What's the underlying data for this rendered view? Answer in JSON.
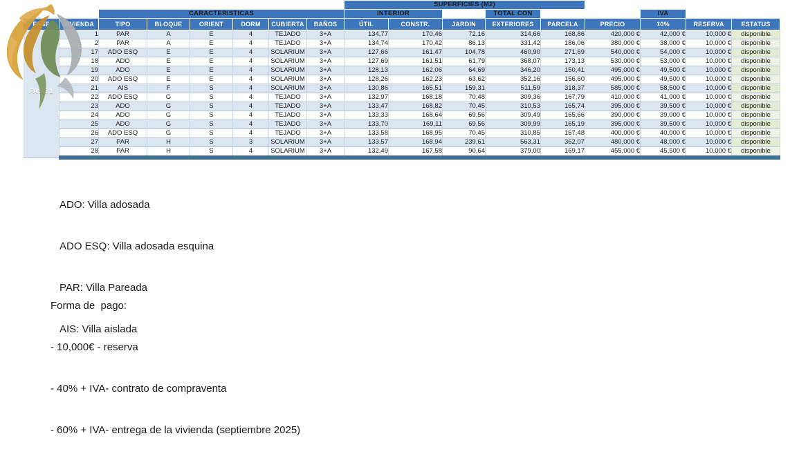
{
  "table": {
    "groups": {
      "superficies": "SUPERFICIES (M2)",
      "caracteristicas": "CARACTERISTICAS",
      "interior": "INTERIOR",
      "total_line1": "TOTAL CON",
      "iva_line1": "IVA"
    },
    "columns": [
      "FASE",
      "VIVIENDA",
      "TIPO",
      "BLOQUE",
      "ORIENT",
      "DORM",
      "CUBIERTA",
      "BAÑOS",
      "ÚTIL",
      "CONSTR.",
      "JARDIN",
      "EXTERIORES",
      "PARCELA",
      "PRECIO",
      "10%",
      "RESERVA",
      "ESTATUS"
    ],
    "col_keys": [
      "vivienda",
      "tipo",
      "bloque",
      "orient",
      "dorm",
      "cubierta",
      "banos",
      "util",
      "constr",
      "jardin",
      "total-con-exteriores",
      "parcela",
      "precio",
      "iva",
      "reserva",
      "estatus"
    ],
    "fase_label": "FASE 1",
    "rows": [
      [
        "1",
        "PAR",
        "A",
        "E",
        "4",
        "TEJADO",
        "3+A",
        "134,77",
        "170,46",
        "72,16",
        "314,66",
        "168,86",
        "420,000 €",
        "42,000 €",
        "10,000 €",
        "disponible"
      ],
      [
        "2",
        "PAR",
        "A",
        "E",
        "4",
        "TEJADO",
        "3+A",
        "134,74",
        "170,42",
        "86,13",
        "331,42",
        "186,06",
        "380,000 €",
        "38,000 €",
        "10,000 €",
        "disponible"
      ],
      [
        "17",
        "ADO ESQ",
        "E",
        "E",
        "4",
        "SOLARIUM",
        "3+A",
        "127,66",
        "161,47",
        "104,78",
        "460,90",
        "271,69",
        "540,000 €",
        "54,000 €",
        "10,000 €",
        "disponible"
      ],
      [
        "18",
        "ADO",
        "E",
        "E",
        "4",
        "SOLARIUM",
        "3+A",
        "127,69",
        "161,51",
        "61,79",
        "368,07",
        "173,13",
        "530,000 €",
        "53,000 €",
        "10,000 €",
        "disponible"
      ],
      [
        "19",
        "ADO",
        "E",
        "E",
        "4",
        "SOLARIUM",
        "3+A",
        "128,13",
        "162,06",
        "64,69",
        "346,20",
        "150,41",
        "495,000 €",
        "49,500 €",
        "10,000 €",
        "disponible"
      ],
      [
        "20",
        "ADO ESQ",
        "E",
        "E",
        "4",
        "SOLARIUM",
        "3+A",
        "128,26",
        "162,23",
        "63,62",
        "352,16",
        "156,60",
        "495,000 €",
        "49,500 €",
        "10,000 €",
        "disponible"
      ],
      [
        "21",
        "AIS",
        "F",
        "S",
        "4",
        "SOLARIUM",
        "3+A",
        "130,86",
        "165,51",
        "159,31",
        "511,59",
        "318,37",
        "585,000 €",
        "58,500 €",
        "10,000 €",
        "disponible"
      ],
      [
        "22",
        "ADO ESQ",
        "G",
        "S",
        "4",
        "TEJADO",
        "3+A",
        "132,97",
        "168,18",
        "70,48",
        "309,36",
        "167,79",
        "410,000 €",
        "41,000 €",
        "10,000 €",
        "disponible"
      ],
      [
        "23",
        "ADO",
        "G",
        "S",
        "4",
        "TEJADO",
        "3+A",
        "133,47",
        "168,82",
        "70,45",
        "310,53",
        "165,74",
        "395,000 €",
        "39,500 €",
        "10,000 €",
        "disponible"
      ],
      [
        "24",
        "ADO",
        "G",
        "S",
        "4",
        "TEJADO",
        "3+A",
        "133,33",
        "168,64",
        "69,56",
        "309,49",
        "165,66",
        "390,000 €",
        "39,000 €",
        "10,000 €",
        "disponible"
      ],
      [
        "25",
        "ADO",
        "G",
        "S",
        "4",
        "TEJADO",
        "3+A",
        "133,70",
        "169,11",
        "69,56",
        "309,99",
        "165,19",
        "395,000 €",
        "39,500 €",
        "10,000 €",
        "disponible"
      ],
      [
        "26",
        "ADO ESQ",
        "G",
        "S",
        "4",
        "TEJADO",
        "3+A",
        "133,58",
        "168,95",
        "70,45",
        "310,85",
        "167,48",
        "400,000 €",
        "40,000 €",
        "10,000 €",
        "disponible"
      ],
      [
        "27",
        "PAR",
        "H",
        "S",
        "3",
        "SOLARIUM",
        "3+A",
        "133,57",
        "168,94",
        "239,61",
        "563,31",
        "362,07",
        "480,000 €",
        "48,000 €",
        "10,000 €",
        "disponible"
      ],
      [
        "28",
        "PAR",
        "H",
        "S",
        "4",
        "SOLARIUM",
        "3+A",
        "132,49",
        "167,58",
        "90,64",
        "379,00",
        "169,17",
        "455,000 €",
        "45,500 €",
        "10,000 €",
        "disponible"
      ]
    ]
  },
  "legend": {
    "lines": [
      "ADO: Villa adosada",
      "ADO ESQ: Villa adosada esquina",
      "PAR: Villa Pareada",
      "AIS: Villa aislada"
    ]
  },
  "payment": {
    "title": "Forma de  pago:",
    "lines": [
      "- 10,000€ - reserva",
      "- 40% + IVA- contrato de compraventa",
      "- 60% + IVA- entrega de la vivienda (septiembre 2025)"
    ]
  },
  "colors": {
    "header_blue": "#3E76BC",
    "row_alt_blue": "#DCE6F1",
    "estatus_green": "#E4ECD3",
    "fase_light_green": "#AEBE91",
    "fase_dark_green": "#7C9342",
    "bottom_bar": "#3F7094",
    "logo_gold": "#D9A23A",
    "logo_green": "#6F8C54",
    "logo_silver": "#A8ADB1"
  }
}
